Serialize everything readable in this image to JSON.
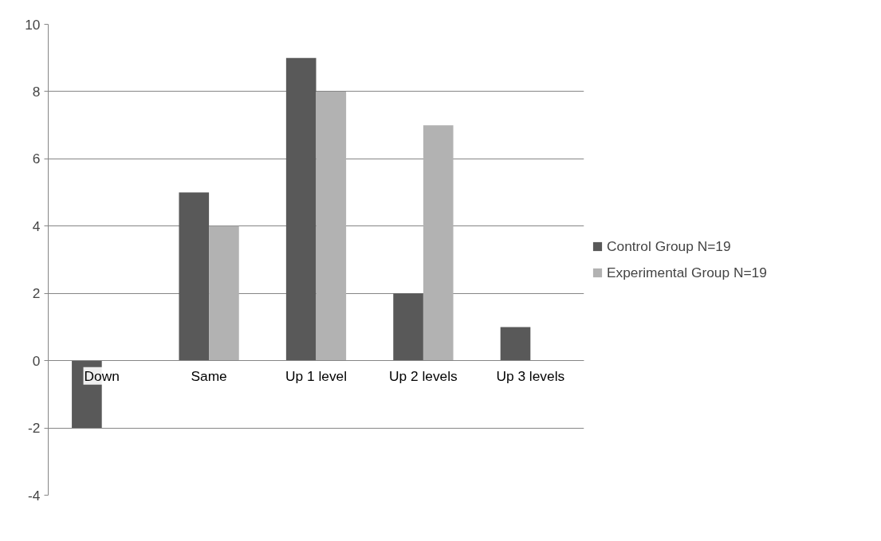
{
  "chart_data": {
    "type": "bar",
    "categories": [
      "Down",
      "Same",
      "Up 1 level",
      "Up 2 levels",
      "Up 3 levels"
    ],
    "series": [
      {
        "name": "Control Group N=19",
        "color": "#595959",
        "values": [
          -2,
          5,
          9,
          2,
          1
        ]
      },
      {
        "name": "Experimental Group N=19",
        "color": "#b2b2b2",
        "values": [
          0,
          4,
          8,
          7,
          0
        ]
      }
    ],
    "ylim": [
      -4,
      10
    ],
    "yticks": [
      -4,
      -2,
      0,
      2,
      4,
      6,
      8,
      10
    ],
    "grid": "y",
    "legend": "right"
  }
}
